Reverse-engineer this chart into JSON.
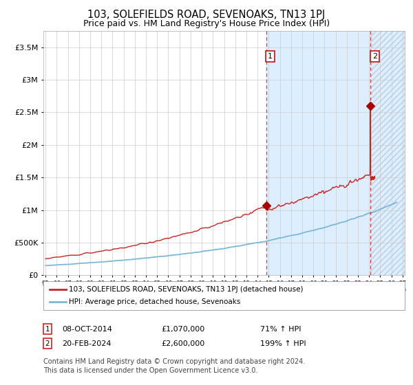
{
  "title": "103, SOLEFIELDS ROAD, SEVENOAKS, TN13 1PJ",
  "subtitle": "Price paid vs. HM Land Registry's House Price Index (HPI)",
  "x_start_year": 1995,
  "x_end_year": 2027,
  "ylim": [
    0,
    3750000
  ],
  "yticks": [
    0,
    500000,
    1000000,
    1500000,
    2000000,
    2500000,
    3000000,
    3500000
  ],
  "ytick_labels": [
    "£0",
    "£500K",
    "£1M",
    "£1.5M",
    "£2M",
    "£2.5M",
    "£3M",
    "£3.5M"
  ],
  "transaction1_date": 2014.77,
  "transaction1_price": 1070000,
  "transaction1_text": "08-OCT-2014",
  "transaction1_amount": "£1,070,000",
  "transaction1_pct": "71% ↑ HPI",
  "transaction2_date": 2024.13,
  "transaction2_price": 2600000,
  "transaction2_text": "20-FEB-2024",
  "transaction2_amount": "£2,600,000",
  "transaction2_pct": "199% ↑ HPI",
  "hpi_line_color": "#7ab8d9",
  "price_line_color": "#cc2222",
  "marker_color": "#aa0000",
  "dashed_line_color": "#cc2222",
  "bg_highlight_color": "#ddeeff",
  "hatch_color": "#bbccdd",
  "grid_color": "#cccccc",
  "legend_label1": "103, SOLEFIELDS ROAD, SEVENOAKS, TN13 1PJ (detached house)",
  "legend_label2": "HPI: Average price, detached house, Sevenoaks",
  "footnote_line1": "Contains HM Land Registry data © Crown copyright and database right 2024.",
  "footnote_line2": "This data is licensed under the Open Government Licence v3.0.",
  "footnote_fontsize": 7,
  "title_fontsize": 10.5,
  "subtitle_fontsize": 9
}
